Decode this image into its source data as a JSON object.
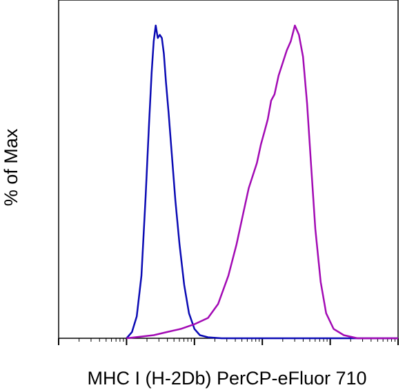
{
  "chart_data": {
    "type": "line",
    "title": "",
    "xlabel": "MHC I (H-2Db) PerCP-eFluor 710",
    "ylabel": "% of Max",
    "x_scale": "log (biexponential display)",
    "xlim_decades": [
      0,
      5
    ],
    "ylim": [
      0,
      100
    ],
    "grid": false,
    "legend": "none",
    "series": [
      {
        "color": "#0a0ab4",
        "points": [
          [
            1.0,
            0
          ],
          [
            1.08,
            2
          ],
          [
            1.15,
            7
          ],
          [
            1.22,
            20
          ],
          [
            1.28,
            45
          ],
          [
            1.33,
            68
          ],
          [
            1.37,
            85
          ],
          [
            1.4,
            95
          ],
          [
            1.43,
            100
          ],
          [
            1.46,
            96
          ],
          [
            1.49,
            97
          ],
          [
            1.52,
            96
          ],
          [
            1.55,
            91
          ],
          [
            1.58,
            82
          ],
          [
            1.62,
            72
          ],
          [
            1.67,
            58
          ],
          [
            1.72,
            44
          ],
          [
            1.78,
            30
          ],
          [
            1.85,
            17
          ],
          [
            1.92,
            8
          ],
          [
            2.0,
            3
          ],
          [
            2.08,
            1
          ],
          [
            2.2,
            0.3
          ],
          [
            2.4,
            0
          ]
        ]
      },
      {
        "color": "#a20ab4",
        "points": [
          [
            1.0,
            0
          ],
          [
            1.2,
            0.5
          ],
          [
            1.4,
            1
          ],
          [
            1.6,
            2
          ],
          [
            1.8,
            3
          ],
          [
            2.0,
            4.5
          ],
          [
            2.2,
            6.5
          ],
          [
            2.35,
            11
          ],
          [
            2.5,
            20
          ],
          [
            2.62,
            30
          ],
          [
            2.72,
            40
          ],
          [
            2.8,
            48
          ],
          [
            2.86,
            52
          ],
          [
            2.92,
            56
          ],
          [
            2.98,
            62
          ],
          [
            3.03,
            66
          ],
          [
            3.08,
            70
          ],
          [
            3.13,
            76
          ],
          [
            3.18,
            78
          ],
          [
            3.24,
            84
          ],
          [
            3.3,
            88
          ],
          [
            3.36,
            92
          ],
          [
            3.42,
            95
          ],
          [
            3.48,
            100
          ],
          [
            3.54,
            97
          ],
          [
            3.6,
            90
          ],
          [
            3.66,
            75
          ],
          [
            3.72,
            55
          ],
          [
            3.78,
            35
          ],
          [
            3.86,
            18
          ],
          [
            3.94,
            8
          ],
          [
            4.05,
            3
          ],
          [
            4.2,
            1
          ],
          [
            4.4,
            0
          ]
        ]
      }
    ]
  }
}
